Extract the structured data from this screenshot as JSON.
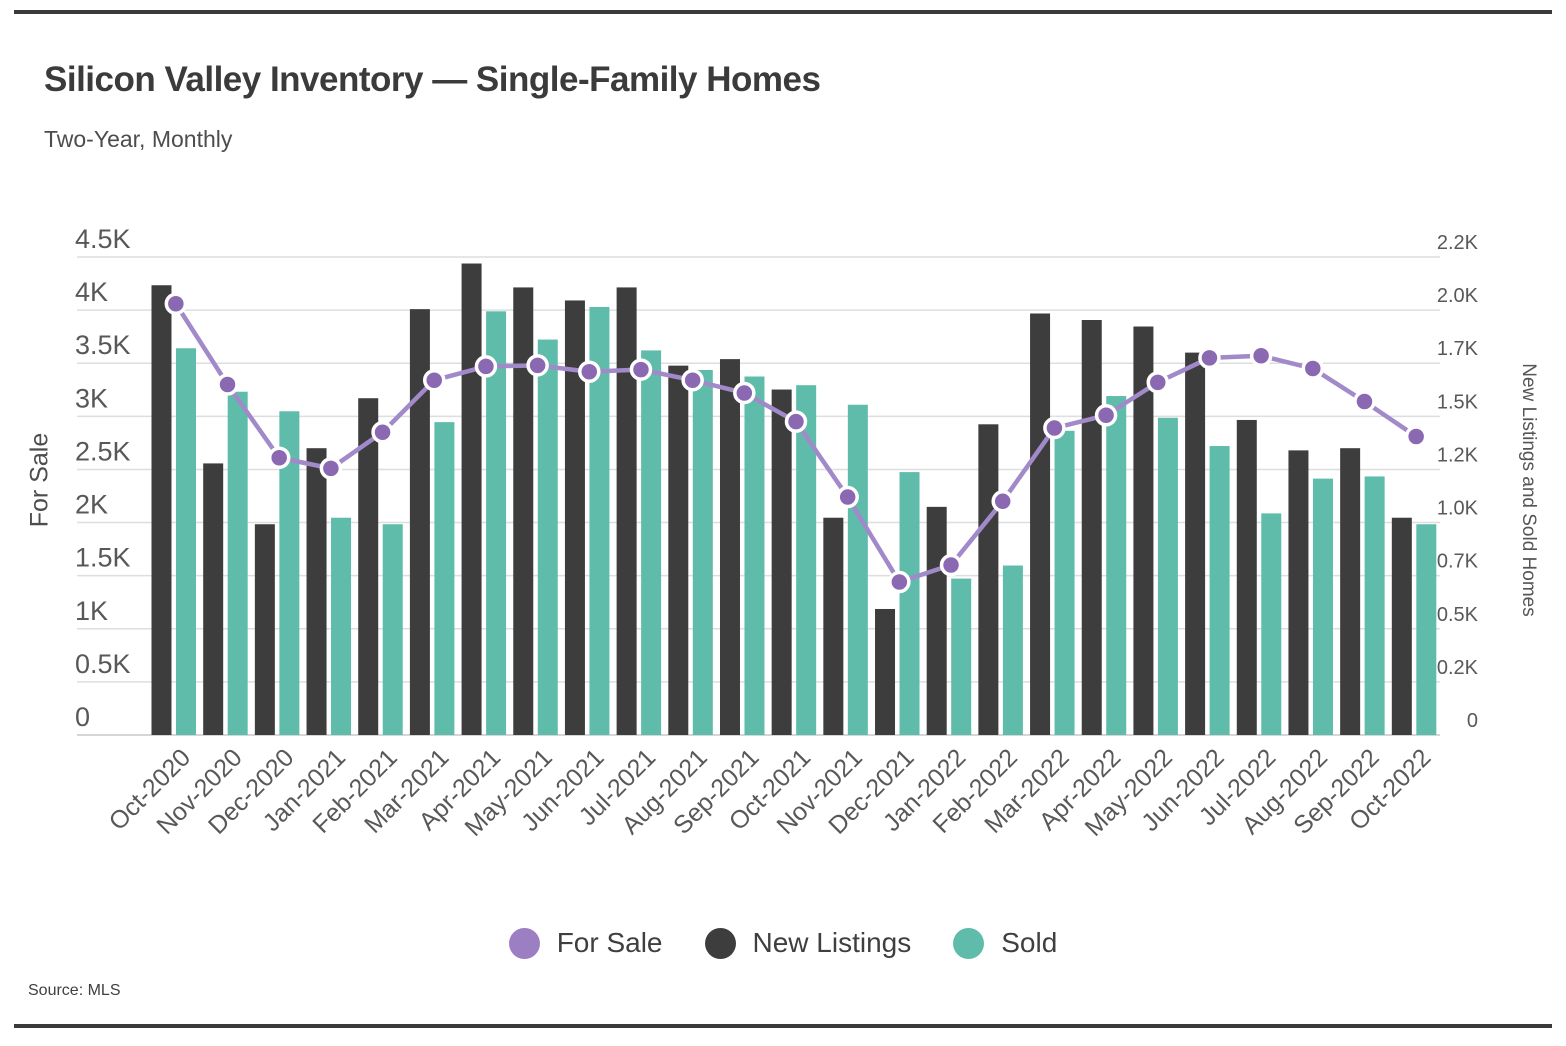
{
  "header": {
    "title": "Silicon Valley Inventory — Single-Family Homes",
    "subtitle": "Two-Year, Monthly"
  },
  "legend": [
    {
      "label": "For Sale",
      "color": "#9b7fc2"
    },
    {
      "label": "New Listings",
      "color": "#3d3d3d"
    },
    {
      "label": "Sold",
      "color": "#5fbcab"
    }
  ],
  "footer": {
    "source": "Source:  MLS"
  },
  "colors": {
    "grid": "#dedede",
    "baseline": "#c9c9c9",
    "tick_text": "#585858",
    "line": "#a189ca",
    "point_fill": "#8a68b2",
    "point_ring": "#ffffff",
    "bar_dark": "#3d3d3d",
    "bar_teal": "#5fbcab"
  },
  "chart_data": {
    "type": "combo (bar + line, dual axis)",
    "grid": "horizontal gridlines on",
    "legend_position": "bottom center",
    "categories": [
      "Oct-2020",
      "Nov-2020",
      "Dec-2020",
      "Jan-2021",
      "Feb-2021",
      "Mar-2021",
      "Apr-2021",
      "May-2021",
      "Jun-2021",
      "Jul-2021",
      "Aug-2021",
      "Sep-2021",
      "Oct-2021",
      "Nov-2021",
      "Dec-2021",
      "Jan-2022",
      "Feb-2022",
      "Mar-2022",
      "Apr-2022",
      "May-2022",
      "Jun-2022",
      "Jul-2022",
      "Aug-2022",
      "Sep-2022",
      "Oct-2022"
    ],
    "series": [
      {
        "name": "For Sale",
        "type": "line",
        "axis": "left",
        "values": [
          4060,
          3300,
          2610,
          2510,
          2850,
          3340,
          3470,
          3480,
          3420,
          3440,
          3340,
          3220,
          2950,
          2240,
          1440,
          1600,
          2200,
          2890,
          3010,
          3320,
          3550,
          3570,
          3450,
          3140,
          2810
        ]
      },
      {
        "name": "New Listings",
        "type": "bar",
        "axis": "right",
        "values": [
          2070,
          1250,
          970,
          1320,
          1550,
          1960,
          2170,
          2060,
          2000,
          2060,
          1700,
          1730,
          1590,
          1000,
          580,
          1050,
          1430,
          1940,
          1910,
          1880,
          1760,
          1450,
          1310,
          1320,
          1000
        ]
      },
      {
        "name": "Sold",
        "type": "bar",
        "axis": "right",
        "values": [
          1780,
          1580,
          1490,
          1000,
          970,
          1440,
          1950,
          1820,
          1970,
          1770,
          1680,
          1650,
          1610,
          1520,
          1210,
          720,
          780,
          1400,
          1560,
          1460,
          1330,
          1020,
          1180,
          1190,
          970
        ]
      }
    ],
    "left_axis": {
      "label": "For Sale",
      "range": [
        0,
        4500
      ],
      "ticks": [
        "4.5K",
        "4K",
        "3.5K",
        "3K",
        "2.5K",
        "2K",
        "1.5K",
        "1K",
        "0.5K",
        "0"
      ],
      "tick_values": [
        4500,
        4000,
        3500,
        3000,
        2500,
        2000,
        1500,
        1000,
        500,
        0
      ]
    },
    "right_axis": {
      "label": "New Listings and Sold Homes",
      "range": [
        0,
        2200
      ],
      "ticks": [
        "2.2K",
        "2.0K",
        "1.7K",
        "1.5K",
        "1.2K",
        "1.0K",
        "0.7K",
        "0.5K",
        "0.2K",
        "0"
      ]
    }
  }
}
